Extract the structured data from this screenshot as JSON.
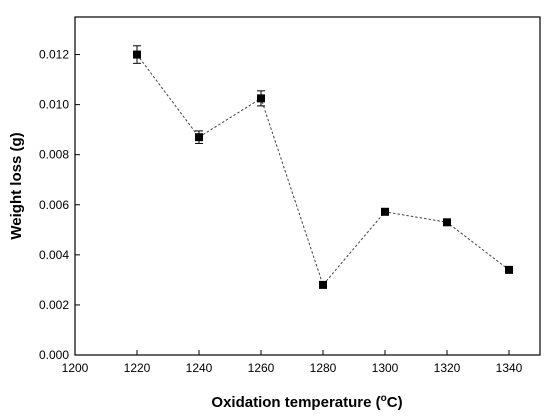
{
  "chart_data": {
    "type": "scatter",
    "title": "",
    "xlabel": "Oxidation temperature (",
    "xlabel_degree": "o",
    "xlabel_unit": "C)",
    "ylabel": "Weight loss (g)",
    "xlim": [
      1200,
      1350
    ],
    "ylim": [
      0.0,
      0.0135
    ],
    "x_ticks": [
      "1200",
      "1220",
      "1240",
      "1260",
      "1280",
      "1300",
      "1320",
      "1340"
    ],
    "x_tick_values": [
      1200,
      1220,
      1240,
      1260,
      1280,
      1300,
      1320,
      1340
    ],
    "y_ticks": [
      "0.000",
      "0.002",
      "0.004",
      "0.006",
      "0.008",
      "0.010",
      "0.012"
    ],
    "y_tick_values": [
      0.0,
      0.002,
      0.004,
      0.006,
      0.008,
      0.01,
      0.012
    ],
    "grid": false,
    "connected_dashed_line": true,
    "series": [
      {
        "x": [
          1220,
          1240,
          1260,
          1280,
          1300,
          1320,
          1340
        ],
        "y": [
          0.012,
          0.0087,
          0.01025,
          0.0028,
          0.00572,
          0.0053,
          0.0034
        ],
        "error": [
          0.00035,
          0.00025,
          0.0003,
          5e-05,
          0.0001,
          5e-05,
          5e-05
        ]
      }
    ],
    "marker": "square",
    "color": "#000000"
  }
}
